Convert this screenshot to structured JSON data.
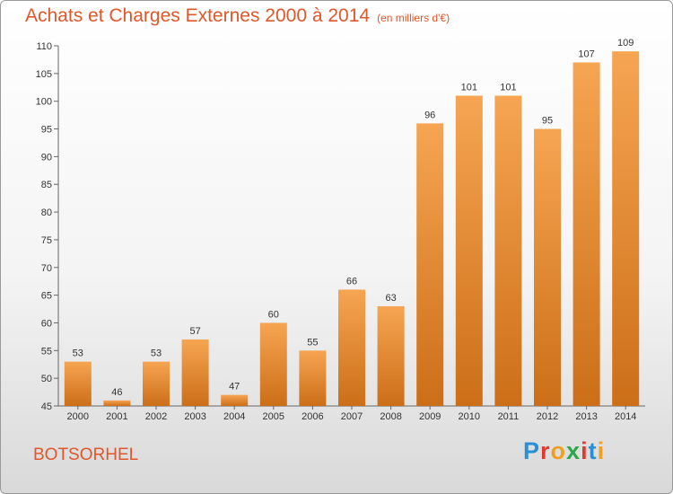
{
  "header": {
    "title": "Achats et Charges Externes 2000 à 2014",
    "subtitle": "(en milliers d'€)"
  },
  "footer": {
    "place": "BOTSORHEL",
    "logo_letters": [
      "P",
      "r",
      "o",
      "x",
      "i",
      "t",
      "i"
    ]
  },
  "colors": {
    "accent": "#e0572a",
    "bar_top": "#f6a552",
    "bar_bottom": "#cc6e18"
  },
  "chart_data": {
    "type": "bar",
    "title": "Achats et Charges Externes 2000 à 2014",
    "subtitle": "(en milliers d'€)",
    "categories": [
      "2000",
      "2001",
      "2002",
      "2003",
      "2004",
      "2005",
      "2006",
      "2007",
      "2008",
      "2009",
      "2010",
      "2011",
      "2012",
      "2013",
      "2014"
    ],
    "values": [
      53,
      46,
      53,
      57,
      47,
      60,
      55,
      66,
      63,
      96,
      101,
      101,
      95,
      107,
      109
    ],
    "ylim": [
      45,
      110
    ],
    "yticks": [
      45,
      50,
      55,
      60,
      65,
      70,
      75,
      80,
      85,
      90,
      95,
      100,
      105,
      110
    ],
    "grid": false,
    "legend": "none"
  }
}
